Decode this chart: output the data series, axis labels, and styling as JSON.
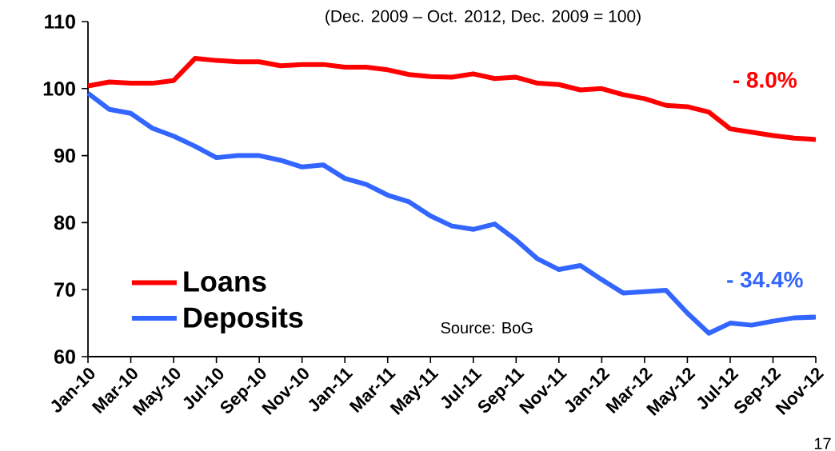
{
  "chart_data": {
    "type": "line",
    "subtitle": "(Dec. 2009 – Oct. 2012, Dec. 2009 = 100)",
    "categories": [
      "Jan-10",
      null,
      "Mar-10",
      null,
      "May-10",
      null,
      "Jul-10",
      null,
      "Sep-10",
      null,
      "Nov-10",
      null,
      "Jan-11",
      null,
      "Mar-11",
      null,
      "May-11",
      null,
      "Jul-11",
      null,
      "Sep-11",
      null,
      "Nov-11",
      null,
      "Jan-12",
      null,
      "Mar-12",
      null,
      "May-12",
      null,
      "Jul-12",
      null,
      "Sep-12",
      null,
      "Nov-12"
    ],
    "series": [
      {
        "name": "Loans",
        "color": "#ff0000",
        "values": [
          100.4,
          101.0,
          100.8,
          100.8,
          101.2,
          104.5,
          104.2,
          104.0,
          104.0,
          103.4,
          103.6,
          103.6,
          103.2,
          103.2,
          102.8,
          102.1,
          101.8,
          101.7,
          102.2,
          101.5,
          101.7,
          100.8,
          100.6,
          99.8,
          100.0,
          99.1,
          98.5,
          97.5,
          97.3,
          96.5,
          94.0,
          93.5,
          93.0,
          92.6,
          92.4
        ]
      },
      {
        "name": "Deposits",
        "color": "#3366ff",
        "values": [
          99.3,
          96.9,
          96.3,
          94.1,
          92.9,
          91.4,
          89.7,
          90.0,
          90.0,
          89.3,
          88.3,
          88.6,
          86.6,
          85.7,
          84.1,
          83.1,
          81.0,
          79.5,
          79.0,
          79.8,
          77.4,
          74.6,
          73.0,
          73.6,
          71.5,
          69.5,
          69.7,
          69.9,
          66.5,
          63.5,
          65.0,
          64.7,
          65.3,
          65.8,
          65.9
        ]
      }
    ],
    "ylim": [
      60,
      110
    ],
    "yticks": [
      60,
      70,
      80,
      90,
      100,
      110
    ],
    "legend": "bottom left",
    "annotations": [
      "- 8.0%",
      "- 34.4%",
      "Source: BoG",
      "17"
    ]
  }
}
